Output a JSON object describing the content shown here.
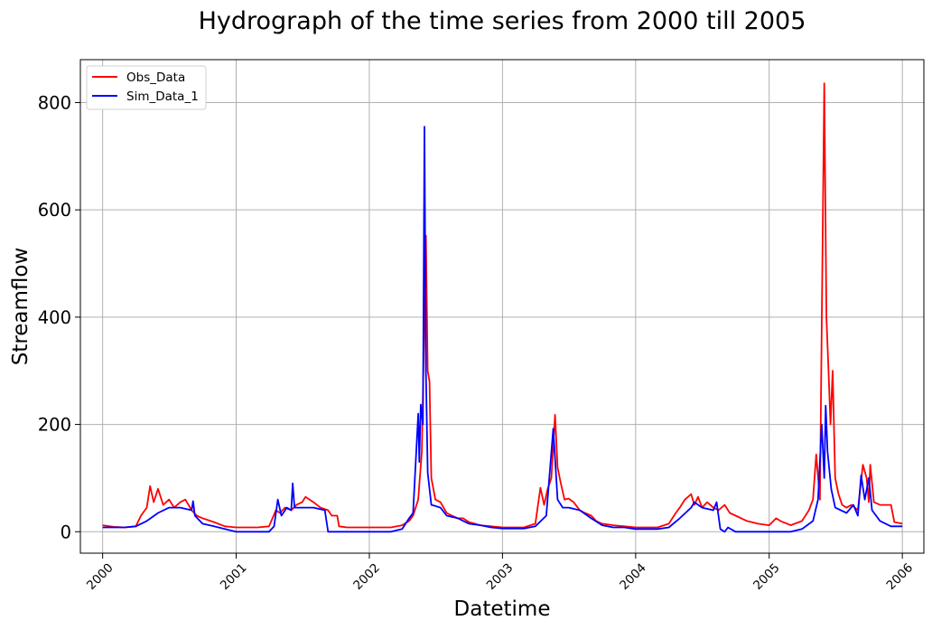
{
  "chart_data": {
    "type": "line",
    "title": "Hydrograph of the time series from 2000 till 2005",
    "xlabel": "Datetime",
    "ylabel": "Streamflow",
    "xlim": [
      "1999-11-01",
      "2006-03-01"
    ],
    "ylim": [
      -40,
      880
    ],
    "x_ticks": [
      "2000",
      "2001",
      "2002",
      "2003",
      "2004",
      "2005",
      "2006"
    ],
    "y_ticks": [
      "0",
      "200",
      "400",
      "600",
      "800"
    ],
    "grid": true,
    "legend_position": "upper-left",
    "series": [
      {
        "name": "Obs_Data",
        "color": "#ff0000",
        "points": [
          [
            "2000-01-01",
            12
          ],
          [
            "2000-02-01",
            9
          ],
          [
            "2000-03-01",
            8
          ],
          [
            "2000-04-01",
            10
          ],
          [
            "2000-04-15",
            30
          ],
          [
            "2000-05-01",
            45
          ],
          [
            "2000-05-10",
            85
          ],
          [
            "2000-05-20",
            55
          ],
          [
            "2000-06-01",
            80
          ],
          [
            "2000-06-15",
            50
          ],
          [
            "2000-07-01",
            60
          ],
          [
            "2000-07-15",
            45
          ],
          [
            "2000-08-01",
            55
          ],
          [
            "2000-08-15",
            60
          ],
          [
            "2000-09-01",
            40
          ],
          [
            "2000-09-15",
            30
          ],
          [
            "2000-10-01",
            25
          ],
          [
            "2000-11-01",
            18
          ],
          [
            "2000-12-01",
            10
          ],
          [
            "2001-01-01",
            8
          ],
          [
            "2001-02-01",
            8
          ],
          [
            "2001-03-01",
            8
          ],
          [
            "2001-04-01",
            10
          ],
          [
            "2001-04-20",
            40
          ],
          [
            "2001-05-01",
            35
          ],
          [
            "2001-05-15",
            45
          ],
          [
            "2001-06-01",
            40
          ],
          [
            "2001-06-15",
            50
          ],
          [
            "2001-07-01",
            55
          ],
          [
            "2001-07-10",
            65
          ],
          [
            "2001-08-01",
            55
          ],
          [
            "2001-08-20",
            45
          ],
          [
            "2001-09-10",
            40
          ],
          [
            "2001-09-20",
            30
          ],
          [
            "2001-10-05",
            30
          ],
          [
            "2001-10-10",
            10
          ],
          [
            "2001-11-01",
            8
          ],
          [
            "2001-12-01",
            8
          ],
          [
            "2002-01-01",
            8
          ],
          [
            "2002-02-01",
            8
          ],
          [
            "2002-03-01",
            8
          ],
          [
            "2002-04-01",
            12
          ],
          [
            "2002-04-20",
            20
          ],
          [
            "2002-05-01",
            30
          ],
          [
            "2002-05-15",
            60
          ],
          [
            "2002-05-25",
            150
          ],
          [
            "2002-06-05",
            552
          ],
          [
            "2002-06-10",
            300
          ],
          [
            "2002-06-15",
            280
          ],
          [
            "2002-06-20",
            100
          ],
          [
            "2002-07-01",
            60
          ],
          [
            "2002-07-15",
            55
          ],
          [
            "2002-08-01",
            35
          ],
          [
            "2002-08-15",
            30
          ],
          [
            "2002-09-01",
            25
          ],
          [
            "2002-09-15",
            25
          ],
          [
            "2002-10-01",
            18
          ],
          [
            "2002-11-01",
            12
          ],
          [
            "2002-12-01",
            10
          ],
          [
            "2003-01-01",
            8
          ],
          [
            "2003-02-01",
            8
          ],
          [
            "2003-03-01",
            8
          ],
          [
            "2003-04-01",
            15
          ],
          [
            "2003-04-15",
            82
          ],
          [
            "2003-04-25",
            50
          ],
          [
            "2003-05-05",
            80
          ],
          [
            "2003-05-15",
            100
          ],
          [
            "2003-05-25",
            218
          ],
          [
            "2003-06-01",
            120
          ],
          [
            "2003-06-10",
            90
          ],
          [
            "2003-06-20",
            60
          ],
          [
            "2003-07-01",
            62
          ],
          [
            "2003-07-15",
            55
          ],
          [
            "2003-08-01",
            40
          ],
          [
            "2003-08-15",
            35
          ],
          [
            "2003-09-01",
            30
          ],
          [
            "2003-09-15",
            20
          ],
          [
            "2003-10-01",
            15
          ],
          [
            "2003-11-01",
            12
          ],
          [
            "2003-12-01",
            10
          ],
          [
            "2004-01-01",
            8
          ],
          [
            "2004-02-01",
            8
          ],
          [
            "2004-03-01",
            8
          ],
          [
            "2004-04-01",
            15
          ],
          [
            "2004-04-20",
            35
          ],
          [
            "2004-05-01",
            45
          ],
          [
            "2004-05-15",
            60
          ],
          [
            "2004-06-01",
            70
          ],
          [
            "2004-06-10",
            50
          ],
          [
            "2004-06-20",
            65
          ],
          [
            "2004-07-01",
            45
          ],
          [
            "2004-07-15",
            55
          ],
          [
            "2004-08-01",
            45
          ],
          [
            "2004-08-15",
            40
          ],
          [
            "2004-09-01",
            50
          ],
          [
            "2004-09-15",
            35
          ],
          [
            "2004-10-01",
            30
          ],
          [
            "2004-11-01",
            20
          ],
          [
            "2004-12-01",
            15
          ],
          [
            "2005-01-01",
            12
          ],
          [
            "2005-01-20",
            25
          ],
          [
            "2005-02-01",
            20
          ],
          [
            "2005-03-01",
            12
          ],
          [
            "2005-04-01",
            20
          ],
          [
            "2005-04-20",
            40
          ],
          [
            "2005-05-01",
            60
          ],
          [
            "2005-05-10",
            144
          ],
          [
            "2005-05-20",
            60
          ],
          [
            "2005-06-01",
            836
          ],
          [
            "2005-06-07",
            400
          ],
          [
            "2005-06-12",
            310
          ],
          [
            "2005-06-18",
            200
          ],
          [
            "2005-06-24",
            300
          ],
          [
            "2005-07-01",
            100
          ],
          [
            "2005-07-10",
            70
          ],
          [
            "2005-07-20",
            50
          ],
          [
            "2005-08-01",
            45
          ],
          [
            "2005-08-15",
            50
          ],
          [
            "2005-09-01",
            40
          ],
          [
            "2005-09-15",
            125
          ],
          [
            "2005-09-25",
            100
          ],
          [
            "2005-10-01",
            55
          ],
          [
            "2005-10-05",
            125
          ],
          [
            "2005-10-15",
            55
          ],
          [
            "2005-11-01",
            50
          ],
          [
            "2005-12-01",
            50
          ],
          [
            "2005-12-10",
            18
          ],
          [
            "2006-01-01",
            15
          ]
        ]
      },
      {
        "name": "Sim_Data_1",
        "color": "#0000ff",
        "points": [
          [
            "2000-01-01",
            8
          ],
          [
            "2000-02-01",
            8
          ],
          [
            "2000-03-01",
            8
          ],
          [
            "2000-04-01",
            10
          ],
          [
            "2000-05-01",
            20
          ],
          [
            "2000-06-01",
            35
          ],
          [
            "2000-07-01",
            45
          ],
          [
            "2000-08-01",
            45
          ],
          [
            "2000-09-01",
            40
          ],
          [
            "2000-09-05",
            57
          ],
          [
            "2000-09-10",
            30
          ],
          [
            "2000-10-01",
            15
          ],
          [
            "2000-11-01",
            10
          ],
          [
            "2000-12-01",
            5
          ],
          [
            "2001-01-01",
            0
          ],
          [
            "2001-02-01",
            0
          ],
          [
            "2001-03-01",
            0
          ],
          [
            "2001-04-01",
            0
          ],
          [
            "2001-04-15",
            10
          ],
          [
            "2001-04-25",
            60
          ],
          [
            "2001-05-05",
            30
          ],
          [
            "2001-05-20",
            45
          ],
          [
            "2001-06-01",
            40
          ],
          [
            "2001-06-05",
            90
          ],
          [
            "2001-06-10",
            45
          ],
          [
            "2001-07-01",
            45
          ],
          [
            "2001-08-01",
            45
          ],
          [
            "2001-09-01",
            40
          ],
          [
            "2001-09-10",
            0
          ],
          [
            "2001-10-01",
            0
          ],
          [
            "2001-11-01",
            0
          ],
          [
            "2001-12-01",
            0
          ],
          [
            "2002-01-01",
            0
          ],
          [
            "2002-02-01",
            0
          ],
          [
            "2002-03-01",
            0
          ],
          [
            "2002-04-01",
            5
          ],
          [
            "2002-04-20",
            25
          ],
          [
            "2002-05-01",
            35
          ],
          [
            "2002-05-15",
            220
          ],
          [
            "2002-05-18",
            130
          ],
          [
            "2002-05-22",
            237
          ],
          [
            "2002-05-28",
            200
          ],
          [
            "2002-06-01",
            755
          ],
          [
            "2002-06-05",
            300
          ],
          [
            "2002-06-10",
            110
          ],
          [
            "2002-06-20",
            50
          ],
          [
            "2002-07-01",
            48
          ],
          [
            "2002-07-15",
            45
          ],
          [
            "2002-08-01",
            30
          ],
          [
            "2002-09-01",
            25
          ],
          [
            "2002-10-01",
            15
          ],
          [
            "2002-11-01",
            12
          ],
          [
            "2002-12-01",
            8
          ],
          [
            "2003-01-01",
            6
          ],
          [
            "2003-02-01",
            6
          ],
          [
            "2003-03-01",
            6
          ],
          [
            "2003-04-01",
            10
          ],
          [
            "2003-05-01",
            30
          ],
          [
            "2003-05-20",
            192
          ],
          [
            "2003-06-01",
            60
          ],
          [
            "2003-06-15",
            45
          ],
          [
            "2003-07-01",
            45
          ],
          [
            "2003-08-01",
            40
          ],
          [
            "2003-09-01",
            25
          ],
          [
            "2003-10-01",
            12
          ],
          [
            "2003-11-01",
            8
          ],
          [
            "2003-12-01",
            8
          ],
          [
            "2004-01-01",
            5
          ],
          [
            "2004-02-01",
            5
          ],
          [
            "2004-03-01",
            5
          ],
          [
            "2004-04-01",
            8
          ],
          [
            "2004-05-01",
            25
          ],
          [
            "2004-06-01",
            45
          ],
          [
            "2004-06-10",
            55
          ],
          [
            "2004-07-01",
            45
          ],
          [
            "2004-08-01",
            40
          ],
          [
            "2004-08-10",
            55
          ],
          [
            "2004-08-20",
            5
          ],
          [
            "2004-09-01",
            0
          ],
          [
            "2004-09-10",
            8
          ],
          [
            "2004-10-01",
            0
          ],
          [
            "2004-11-01",
            0
          ],
          [
            "2004-12-01",
            0
          ],
          [
            "2005-01-01",
            0
          ],
          [
            "2005-02-01",
            0
          ],
          [
            "2005-03-01",
            0
          ],
          [
            "2005-04-01",
            5
          ],
          [
            "2005-05-01",
            20
          ],
          [
            "2005-05-15",
            60
          ],
          [
            "2005-05-25",
            200
          ],
          [
            "2005-06-01",
            100
          ],
          [
            "2005-06-05",
            235
          ],
          [
            "2005-06-10",
            150
          ],
          [
            "2005-06-20",
            80
          ],
          [
            "2005-07-01",
            45
          ],
          [
            "2005-08-01",
            35
          ],
          [
            "2005-08-20",
            50
          ],
          [
            "2005-09-01",
            30
          ],
          [
            "2005-09-10",
            105
          ],
          [
            "2005-09-20",
            60
          ],
          [
            "2005-10-01",
            100
          ],
          [
            "2005-10-10",
            40
          ],
          [
            "2005-11-01",
            20
          ],
          [
            "2005-12-01",
            10
          ],
          [
            "2006-01-01",
            10
          ]
        ]
      }
    ]
  }
}
